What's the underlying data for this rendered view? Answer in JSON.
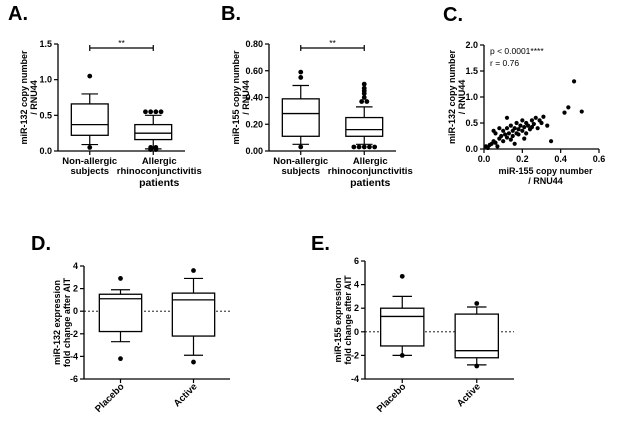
{
  "chart_data": [
    {
      "panel": "A.",
      "type": "box",
      "ylabel": [
        "miR-132 copy number",
        "/ RNU44"
      ],
      "ylim": [
        0,
        1.5
      ],
      "yticks": [
        "0.0",
        "0.5",
        "1.0",
        "1.5"
      ],
      "categories": [
        {
          "lines": [
            "Non-allergic",
            "subjects"
          ],
          "extra": ""
        },
        {
          "lines": [
            "Allergic",
            "rhinoconjunctivitis"
          ],
          "extra": "patients"
        }
      ],
      "boxes": [
        {
          "whisker_low": 0.09,
          "q1": 0.22,
          "median": 0.37,
          "q3": 0.66,
          "whisker_high": 0.8,
          "outliers": [
            1.05,
            0.05
          ]
        },
        {
          "whisker_low": 0.03,
          "q1": 0.16,
          "median": 0.25,
          "q3": 0.37,
          "whisker_high": 0.5,
          "outliers": [
            0.55,
            0.55,
            0.55,
            0.55,
            0.02,
            0.02,
            0.05,
            0.05
          ]
        }
      ],
      "significance": "**"
    },
    {
      "panel": "B.",
      "type": "box",
      "ylabel": [
        "miR-155 copy number",
        "/ RNU44"
      ],
      "ylim": [
        0,
        0.8
      ],
      "yticks": [
        "0.00",
        "0.20",
        "0.40",
        "0.60",
        "0.80"
      ],
      "categories": [
        {
          "lines": [
            "Non-allergic",
            "subjects"
          ],
          "extra": ""
        },
        {
          "lines": [
            "Allergic",
            "rhinoconjunctivitis"
          ],
          "extra": "patients"
        }
      ],
      "boxes": [
        {
          "whisker_low": 0.05,
          "q1": 0.11,
          "median": 0.28,
          "q3": 0.39,
          "whisker_high": 0.49,
          "outliers": [
            0.59,
            0.55,
            0.03
          ]
        },
        {
          "whisker_low": 0.05,
          "q1": 0.11,
          "median": 0.16,
          "q3": 0.25,
          "whisker_high": 0.33,
          "outliers": [
            0.5,
            0.47,
            0.45,
            0.43,
            0.4,
            0.37,
            0.37,
            0.03,
            0.03,
            0.03,
            0.03,
            0.03
          ]
        }
      ],
      "significance": "**"
    },
    {
      "panel": "C.",
      "type": "scatter",
      "xlabel": [
        "miR-155 copy number",
        "/ RNU44"
      ],
      "ylabel": [
        "miR-132 copy number",
        "/ RNU44"
      ],
      "xlim": [
        0,
        0.6
      ],
      "ylim": [
        0,
        2.0
      ],
      "xticks": [
        "0.0",
        "0.2",
        "0.4",
        "0.6"
      ],
      "yticks": [
        "0.0",
        "0.5",
        "1.0",
        "1.5",
        "2.0"
      ],
      "annotations": [
        "p < 0.0001****",
        "r = 0.76"
      ],
      "points": [
        [
          0.01,
          0.05
        ],
        [
          0.02,
          0.02
        ],
        [
          0.03,
          0.08
        ],
        [
          0.04,
          0.1
        ],
        [
          0.05,
          0.15
        ],
        [
          0.06,
          0.12
        ],
        [
          0.06,
          0.3
        ],
        [
          0.07,
          0.05
        ],
        [
          0.08,
          0.2
        ],
        [
          0.09,
          0.25
        ],
        [
          0.1,
          0.15
        ],
        [
          0.1,
          0.35
        ],
        [
          0.11,
          0.28
        ],
        [
          0.12,
          0.4
        ],
        [
          0.12,
          0.22
        ],
        [
          0.13,
          0.3
        ],
        [
          0.14,
          0.18
        ],
        [
          0.14,
          0.45
        ],
        [
          0.15,
          0.35
        ],
        [
          0.15,
          0.25
        ],
        [
          0.16,
          0.4
        ],
        [
          0.17,
          0.3
        ],
        [
          0.17,
          0.5
        ],
        [
          0.18,
          0.38
        ],
        [
          0.18,
          0.28
        ],
        [
          0.19,
          0.45
        ],
        [
          0.2,
          0.35
        ],
        [
          0.2,
          0.55
        ],
        [
          0.21,
          0.42
        ],
        [
          0.22,
          0.3
        ],
        [
          0.22,
          0.5
        ],
        [
          0.23,
          0.45
        ],
        [
          0.24,
          0.38
        ],
        [
          0.25,
          0.55
        ],
        [
          0.25,
          0.42
        ],
        [
          0.26,
          0.48
        ],
        [
          0.27,
          0.6
        ],
        [
          0.28,
          0.4
        ],
        [
          0.29,
          0.55
        ],
        [
          0.3,
          0.5
        ],
        [
          0.31,
          0.62
        ],
        [
          0.33,
          0.45
        ],
        [
          0.35,
          0.15
        ],
        [
          0.12,
          0.6
        ],
        [
          0.16,
          0.1
        ],
        [
          0.08,
          0.4
        ],
        [
          0.05,
          0.35
        ],
        [
          0.21,
          0.2
        ],
        [
          0.42,
          0.7
        ],
        [
          0.44,
          0.8
        ],
        [
          0.47,
          1.3
        ],
        [
          0.51,
          0.72
        ]
      ]
    },
    {
      "panel": "D.",
      "type": "box",
      "ylabel": [
        "miR-132 expression",
        "fold change after AIT"
      ],
      "ylim": [
        -6,
        4
      ],
      "yticks": [
        "-6",
        "-4",
        "-2",
        "0",
        "2",
        "4"
      ],
      "categories": [
        {
          "lines": [
            "Placebo"
          ],
          "extra": ""
        },
        {
          "lines": [
            "Active"
          ],
          "extra": ""
        }
      ],
      "boxes": [
        {
          "whisker_low": -2.7,
          "q1": -1.8,
          "median": 1.1,
          "q3": 1.5,
          "whisker_high": 1.9,
          "outliers": [
            2.9,
            -4.2
          ]
        },
        {
          "whisker_low": -3.9,
          "q1": -2.2,
          "median": 1.0,
          "q3": 1.6,
          "whisker_high": 2.9,
          "outliers": [
            3.6,
            -4.5
          ]
        }
      ],
      "reference_line": 0
    },
    {
      "panel": "E.",
      "type": "box",
      "ylabel": [
        "miR-155 expression",
        "fold change after AIT"
      ],
      "ylim": [
        -4,
        6
      ],
      "yticks": [
        "-4",
        "-2",
        "0",
        "2",
        "4",
        "6"
      ],
      "categories": [
        {
          "lines": [
            "Placebo"
          ],
          "extra": ""
        },
        {
          "lines": [
            "Active"
          ],
          "extra": ""
        }
      ],
      "boxes": [
        {
          "whisker_low": -2.0,
          "q1": -1.2,
          "median": 1.3,
          "q3": 2.0,
          "whisker_high": 3.0,
          "outliers": [
            4.7,
            -2.0
          ]
        },
        {
          "whisker_low": -2.8,
          "q1": -2.2,
          "median": -1.6,
          "q3": 1.5,
          "whisker_high": 2.1,
          "outliers": [
            2.4,
            -2.9
          ]
        }
      ],
      "reference_line": 0
    }
  ]
}
